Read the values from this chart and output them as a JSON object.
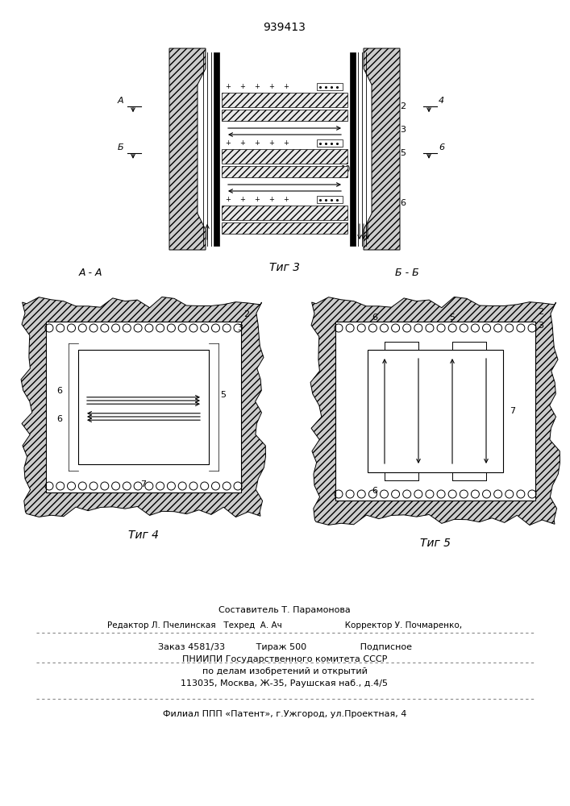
{
  "title": "939413",
  "fig3_caption": "Τиг 3",
  "fig4_caption": "Τиг 4",
  "fig5_caption": "Τиг 5",
  "section_AA": "A - A",
  "section_BB": "Б - Б",
  "bg_color": "#ffffff",
  "lc": "#000000",
  "gray": "#aaaaaa",
  "footer_line0": "Составитель Т. Парамонова",
  "footer_line1": "Редактор Л. Пчелинская   Техред  А. Ач                        Корректор У. Почмаренко,",
  "footer_line2": "Заказ 4581/33           Тираж 500                   Подписное",
  "footer_line3": "ПНИИПИ Государственного комитета СССР",
  "footer_line4": "по делам изобретений и открытий",
  "footer_line5": "113035, Москва, Ж-35, Раушская наб., д.4/5",
  "footer_line6": "Филиал ППП «Патент», г.Ужгород, ул.Проектная, 4"
}
